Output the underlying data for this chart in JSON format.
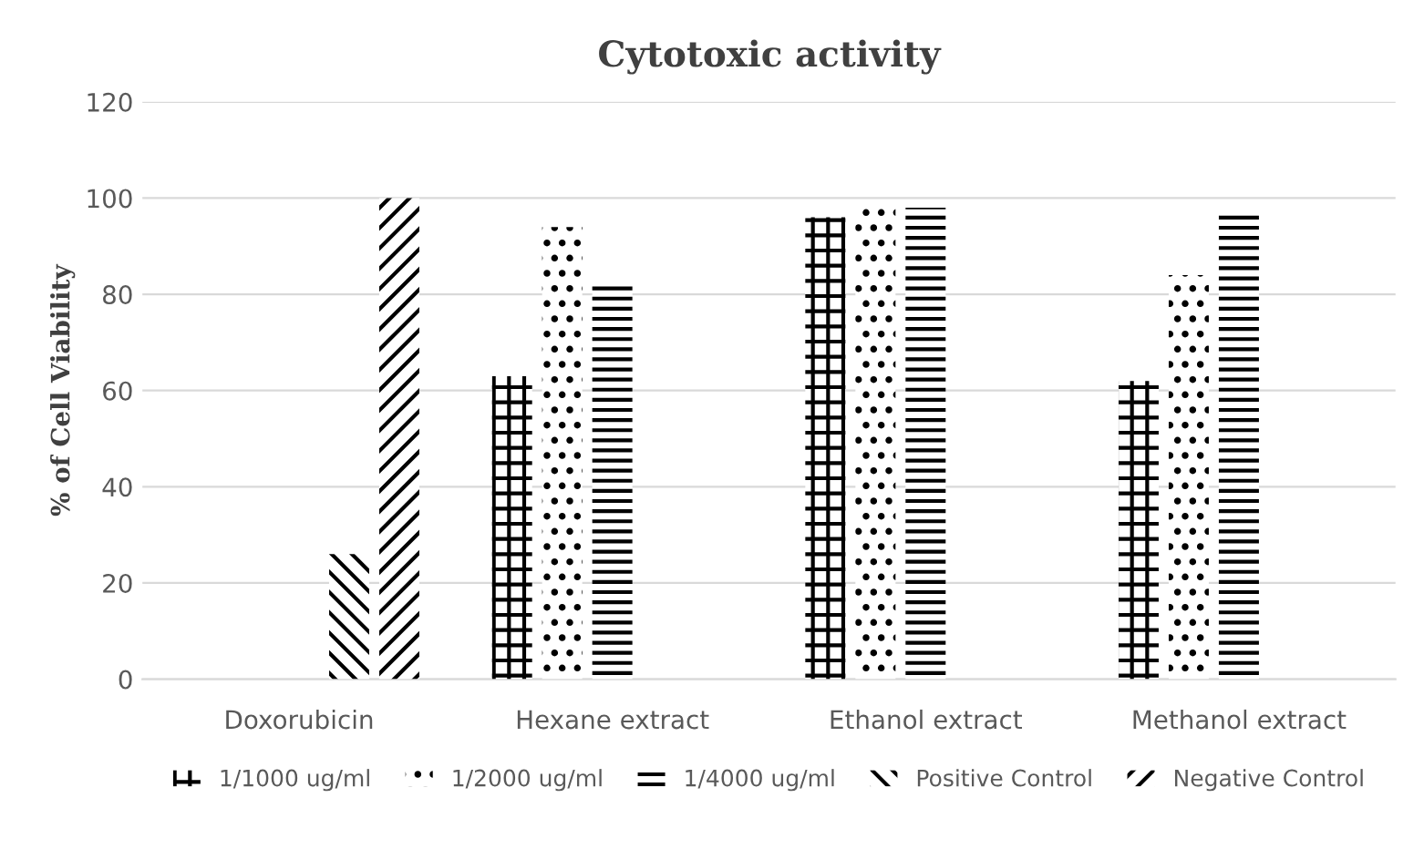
{
  "chart_data": {
    "type": "bar",
    "title": "Cytotoxic activity",
    "ylabel": "% of Cell Viability",
    "categories": [
      "Doxorubicin",
      "Hexane extract",
      "Ethanol extract",
      "Methanol extract"
    ],
    "series": [
      {
        "name": "1/1000 ug/ml",
        "color": "#000000",
        "values": [
          null,
          63,
          96,
          62
        ]
      },
      {
        "name": "1/2000 ug/ml",
        "color": "#000000",
        "values": [
          null,
          94,
          98,
          84
        ]
      },
      {
        "name": "1/4000 ug/ml",
        "color": "#000000",
        "values": [
          null,
          82,
          98,
          97
        ]
      },
      {
        "name": "Positive Control",
        "color": "#000000",
        "values": [
          26,
          null,
          null,
          null
        ]
      },
      {
        "name": "Negative Control",
        "color": "#000000",
        "values": [
          100,
          null,
          null,
          null
        ]
      }
    ],
    "ylim": [
      0,
      120
    ],
    "yticks": [
      0,
      20,
      40,
      60,
      80,
      100,
      120
    ],
    "grid": "y",
    "legend": "bottom"
  }
}
